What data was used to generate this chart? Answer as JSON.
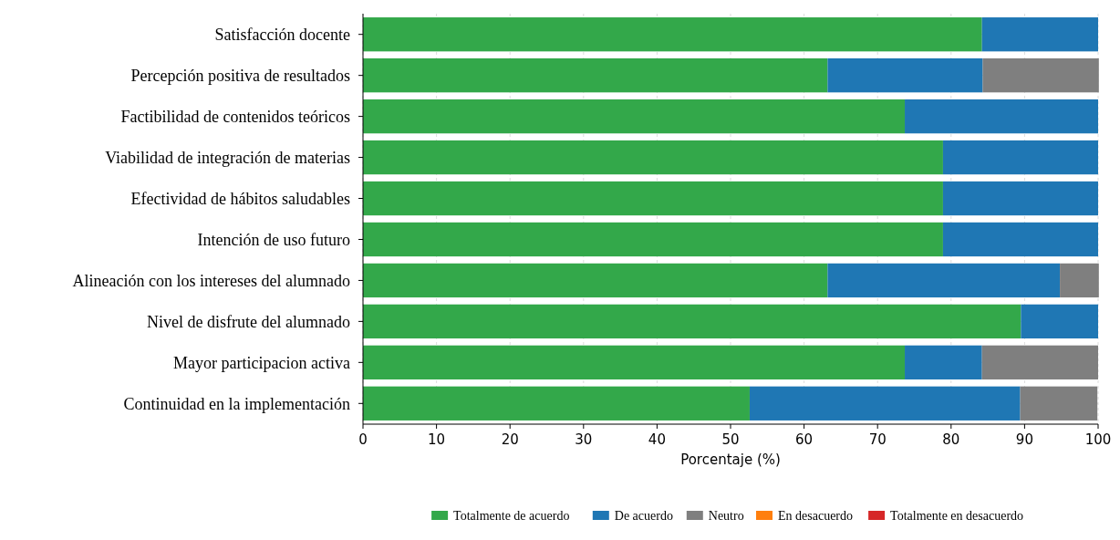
{
  "chart_data": {
    "type": "bar",
    "orientation": "horizontal",
    "stacked": true,
    "xlabel": "Porcentaje (%)",
    "categories": [
      "Satisfacción docente",
      "Percepción positiva de resultados",
      "Factibilidad de contenidos teóricos",
      "Viabilidad de integración de materias",
      "Efectividad de hábitos saludables",
      "Intención de uso futuro",
      "Alineación con los intereses del alumnado",
      "Nivel de disfrute del alumnado",
      "Mayor participacion activa",
      "Continuidad en la implementación"
    ],
    "series": [
      {
        "name": "Totalmente de acuerdo",
        "color": "#33a84a",
        "values": [
          84.2,
          63.2,
          73.7,
          78.9,
          78.9,
          78.9,
          63.2,
          89.5,
          73.7,
          52.6
        ]
      },
      {
        "name": "De acuerdo",
        "color": "#1f77b4",
        "values": [
          15.8,
          21.1,
          26.3,
          21.1,
          21.1,
          21.1,
          31.6,
          10.5,
          10.5,
          36.8
        ]
      },
      {
        "name": "Neutro",
        "color": "#7f7f7f",
        "values": [
          0,
          15.8,
          0,
          0,
          0,
          0,
          5.3,
          0,
          15.8,
          10.5
        ]
      },
      {
        "name": "En desacuerdo",
        "color": "#ff7f0e",
        "values": [
          0,
          0,
          0,
          0,
          0,
          0,
          0,
          0,
          0,
          0
        ]
      },
      {
        "name": "Totalmente en desacuerdo",
        "color": "#d62728",
        "values": [
          0,
          0,
          0,
          0,
          0,
          0,
          0,
          0,
          0,
          0
        ]
      }
    ],
    "xlim": [
      0,
      100
    ],
    "xticks": [
      0,
      10,
      20,
      30,
      40,
      50,
      60,
      70,
      80,
      90,
      100
    ],
    "grid": true,
    "legend": "bottom"
  }
}
